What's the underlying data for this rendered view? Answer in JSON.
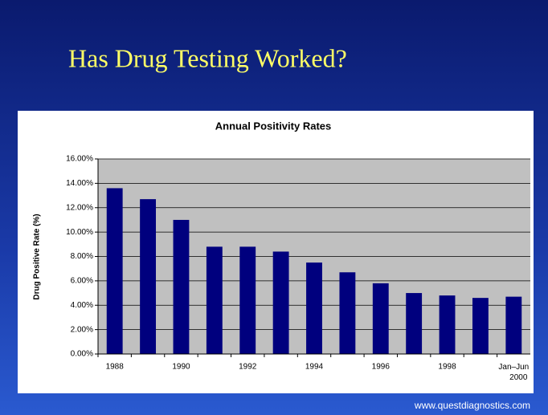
{
  "title": "Has Drug Testing Worked?",
  "footer": "www.questdiagnostics.com",
  "chart_data": {
    "type": "bar",
    "title": "Annual Positivity Rates",
    "y_label": "Drug Positive Rate (%)",
    "categories": [
      "1988",
      null,
      "1990",
      null,
      "1992",
      null,
      "1994",
      null,
      "1996",
      null,
      "1998",
      null,
      "Jan–Jun 2000"
    ],
    "values": [
      13.6,
      12.7,
      11.0,
      8.8,
      8.8,
      8.4,
      7.5,
      6.7,
      5.8,
      5.0,
      4.8,
      4.6,
      4.7
    ],
    "color": "#00007e",
    "ylim": [
      0,
      16
    ],
    "yticks": [
      {
        "value": 0,
        "label": "0.00%"
      },
      {
        "value": 2,
        "label": "2.00%"
      },
      {
        "value": 4,
        "label": "4.00%"
      },
      {
        "value": 6,
        "label": "6.00%"
      },
      {
        "value": 8,
        "label": "8.00%"
      },
      {
        "value": 10,
        "label": "10.00%"
      },
      {
        "value": 12,
        "label": "12.00%"
      },
      {
        "value": 14,
        "label": "14.00%"
      },
      {
        "value": 16,
        "label": "16.00%"
      }
    ],
    "grid": true
  }
}
